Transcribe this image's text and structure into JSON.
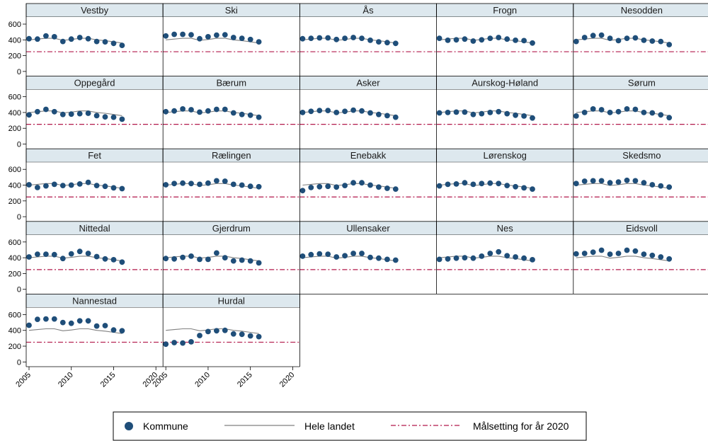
{
  "chart_data": {
    "type": "scatter",
    "x_ticks": [
      2005,
      2010,
      2015,
      2020
    ],
    "y_ticks": [
      0,
      200,
      400,
      600
    ],
    "xlim": [
      2005,
      2020
    ],
    "ylim": [
      -60,
      690
    ],
    "grid": false,
    "legend_position": "bottom",
    "colors": {
      "points": "#1f4e79",
      "national": "#808080",
      "target": "#b2184b",
      "strip_bg": "#dde8ee"
    },
    "legend": [
      {
        "key": "kommune",
        "label": "Kommune"
      },
      {
        "key": "national",
        "label": "Hele landet"
      },
      {
        "key": "target",
        "label": "Målsetting for år 2020"
      }
    ],
    "years": [
      2005,
      2006,
      2007,
      2008,
      2009,
      2010,
      2011,
      2012,
      2013,
      2014,
      2015,
      2016
    ],
    "national": [
      400,
      410,
      420,
      420,
      395,
      405,
      420,
      420,
      400,
      390,
      375,
      360
    ],
    "target": 250,
    "panels": [
      {
        "name": "Vestby",
        "values": [
          415,
          410,
          450,
          440,
          380,
          410,
          430,
          415,
          380,
          375,
          355,
          330
        ]
      },
      {
        "name": "Ski",
        "values": [
          450,
          470,
          470,
          465,
          415,
          440,
          460,
          465,
          430,
          420,
          405,
          375
        ]
      },
      {
        "name": "Ås",
        "values": [
          415,
          420,
          425,
          425,
          405,
          420,
          430,
          420,
          395,
          375,
          365,
          355
        ]
      },
      {
        "name": "Frogn",
        "values": [
          420,
          395,
          400,
          410,
          385,
          400,
          420,
          430,
          410,
          395,
          390,
          360
        ]
      },
      {
        "name": "Nesodden",
        "values": [
          380,
          430,
          455,
          460,
          420,
          390,
          420,
          425,
          395,
          385,
          380,
          340
        ]
      },
      {
        "name": "Oppegård",
        "values": [
          370,
          410,
          440,
          410,
          375,
          380,
          385,
          390,
          360,
          345,
          340,
          315
        ]
      },
      {
        "name": "Bærum",
        "values": [
          410,
          420,
          445,
          435,
          405,
          420,
          440,
          440,
          395,
          375,
          365,
          340
        ]
      },
      {
        "name": "Asker",
        "values": [
          400,
          415,
          425,
          425,
          400,
          415,
          430,
          420,
          395,
          375,
          360,
          340
        ]
      },
      {
        "name": "Aurskog-Høland",
        "values": [
          395,
          400,
          405,
          405,
          375,
          385,
          400,
          410,
          385,
          365,
          355,
          330
        ]
      },
      {
        "name": "Sørum",
        "values": [
          355,
          400,
          445,
          435,
          400,
          410,
          445,
          440,
          400,
          395,
          370,
          335
        ]
      },
      {
        "name": "Fet",
        "values": [
          405,
          370,
          390,
          410,
          395,
          400,
          415,
          435,
          395,
          385,
          365,
          355
        ]
      },
      {
        "name": "Rælingen",
        "values": [
          405,
          420,
          425,
          420,
          410,
          425,
          455,
          450,
          410,
          400,
          385,
          380
        ]
      },
      {
        "name": "Enebakk",
        "values": [
          330,
          370,
          380,
          385,
          375,
          395,
          430,
          430,
          400,
          375,
          360,
          350
        ]
      },
      {
        "name": "Lørenskog",
        "values": [
          390,
          410,
          415,
          430,
          410,
          420,
          425,
          420,
          395,
          380,
          365,
          350
        ]
      },
      {
        "name": "Skedsmo",
        "values": [
          420,
          450,
          455,
          455,
          430,
          440,
          460,
          455,
          430,
          405,
          390,
          375
        ]
      },
      {
        "name": "Nittedal",
        "values": [
          410,
          445,
          445,
          440,
          390,
          450,
          480,
          455,
          415,
          385,
          375,
          345
        ]
      },
      {
        "name": "Gjerdrum",
        "values": [
          390,
          385,
          405,
          420,
          380,
          380,
          460,
          400,
          360,
          370,
          360,
          335
        ]
      },
      {
        "name": "Ullensaker",
        "values": [
          420,
          440,
          450,
          445,
          410,
          425,
          455,
          455,
          405,
          395,
          380,
          370
        ]
      },
      {
        "name": "Nes",
        "values": [
          380,
          385,
          395,
          400,
          395,
          420,
          455,
          475,
          425,
          410,
          395,
          375
        ]
      },
      {
        "name": "Eidsvoll",
        "values": [
          450,
          455,
          470,
          495,
          445,
          455,
          495,
          485,
          445,
          430,
          410,
          385
        ]
      },
      {
        "name": "Nannestad",
        "values": [
          465,
          540,
          545,
          545,
          500,
          490,
          520,
          520,
          455,
          460,
          405,
          395
        ]
      },
      {
        "name": "Hurdal",
        "values": [
          225,
          245,
          240,
          255,
          335,
          385,
          395,
          400,
          355,
          350,
          330,
          320
        ]
      }
    ]
  }
}
